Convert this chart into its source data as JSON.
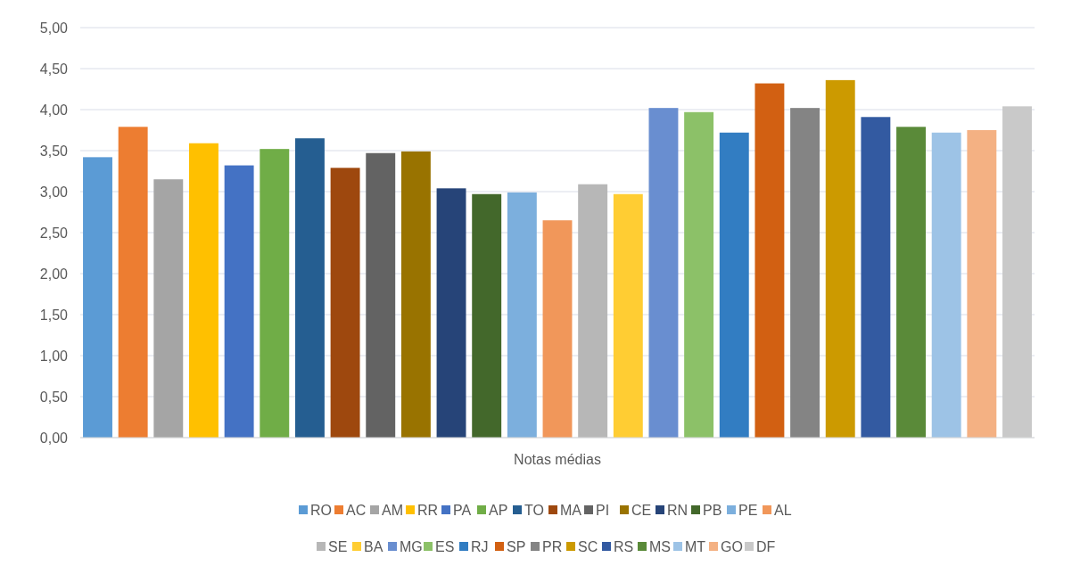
{
  "chart_data": {
    "type": "bar",
    "categories": [
      "Notas médias"
    ],
    "ylim": [
      0,
      5
    ],
    "yticks": [
      {
        "value": 0,
        "label": "0,00"
      },
      {
        "value": 0.5,
        "label": "0,50"
      },
      {
        "value": 1,
        "label": "1,00"
      },
      {
        "value": 1.5,
        "label": "1,50"
      },
      {
        "value": 2,
        "label": "2,00"
      },
      {
        "value": 2.5,
        "label": "2,50"
      },
      {
        "value": 3,
        "label": "3,00"
      },
      {
        "value": 3.5,
        "label": "3,50"
      },
      {
        "value": 4,
        "label": "4,00"
      },
      {
        "value": 4.5,
        "label": "4,50"
      },
      {
        "value": 5,
        "label": "5,00"
      }
    ],
    "grid": "y",
    "legend": "bottom",
    "series": [
      {
        "name": "RO",
        "color": "#5b9bd5",
        "values": [
          3.42
        ]
      },
      {
        "name": "AC",
        "color": "#ed7d31",
        "values": [
          3.79
        ]
      },
      {
        "name": "AM",
        "color": "#a5a5a5",
        "values": [
          3.15
        ]
      },
      {
        "name": "RR",
        "color": "#ffc000",
        "values": [
          3.59
        ]
      },
      {
        "name": "PA",
        "color": "#4472c4",
        "values": [
          3.32
        ]
      },
      {
        "name": "AP",
        "color": "#70ad47",
        "values": [
          3.52
        ]
      },
      {
        "name": "TO",
        "color": "#255e91",
        "values": [
          3.65
        ]
      },
      {
        "name": "MA",
        "color": "#9e480e",
        "values": [
          3.29
        ]
      },
      {
        "name": "PI",
        "color": "#636363",
        "values": [
          3.47
        ]
      },
      {
        "name": "CE",
        "color": "#997300",
        "values": [
          3.49
        ]
      },
      {
        "name": "RN",
        "color": "#264478",
        "values": [
          3.04
        ]
      },
      {
        "name": "PB",
        "color": "#43682b",
        "values": [
          2.97
        ]
      },
      {
        "name": "PE",
        "color": "#7cafdd",
        "values": [
          2.99
        ]
      },
      {
        "name": "AL",
        "color": "#f1975a",
        "values": [
          2.65
        ]
      },
      {
        "name": "SE",
        "color": "#b7b7b7",
        "values": [
          3.09
        ]
      },
      {
        "name": "BA",
        "color": "#ffcd33",
        "values": [
          2.97
        ]
      },
      {
        "name": "MG",
        "color": "#698ed0",
        "values": [
          4.02
        ]
      },
      {
        "name": "ES",
        "color": "#8cc168",
        "values": [
          3.97
        ]
      },
      {
        "name": "RJ",
        "color": "#327dc2",
        "values": [
          3.72
        ]
      },
      {
        "name": "SP",
        "color": "#d26012",
        "values": [
          4.32
        ]
      },
      {
        "name": "PR",
        "color": "#848484",
        "values": [
          4.02
        ]
      },
      {
        "name": "SC",
        "color": "#cc9a00",
        "values": [
          4.36
        ]
      },
      {
        "name": "RS",
        "color": "#335aa1",
        "values": [
          3.91
        ]
      },
      {
        "name": "MS",
        "color": "#5a8a39",
        "values": [
          3.79
        ]
      },
      {
        "name": "MT",
        "color": "#9dc3e6",
        "values": [
          3.72
        ]
      },
      {
        "name": "GO",
        "color": "#f4b183",
        "values": [
          3.75
        ]
      },
      {
        "name": "DF",
        "color": "#c9c9c9",
        "values": [
          4.04
        ]
      }
    ]
  }
}
